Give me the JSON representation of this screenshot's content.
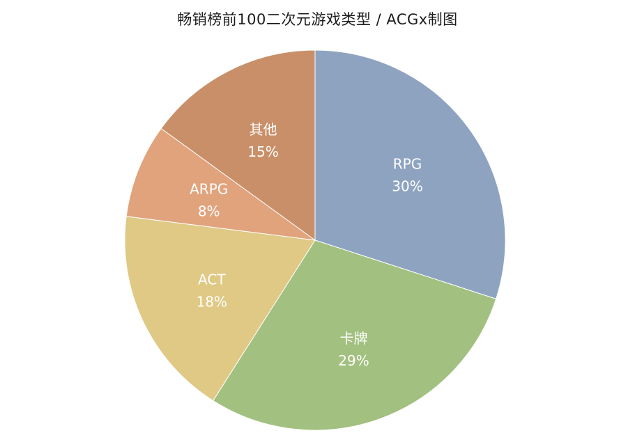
{
  "chart_data": {
    "type": "pie",
    "title": "畅销榜前100二次元游戏类型 / ACGx制图",
    "slices": [
      {
        "label": "RPG",
        "value": 30,
        "value_label": "30%",
        "color": "#8ea3c0"
      },
      {
        "label": "卡牌",
        "value": 29,
        "value_label": "29%",
        "color": "#a2c07f"
      },
      {
        "label": "ACT",
        "value": 18,
        "value_label": "18%",
        "color": "#dfc985"
      },
      {
        "label": "ARPG",
        "value": 8,
        "value_label": "8%",
        "color": "#e1a37c"
      },
      {
        "label": "其他",
        "value": 15,
        "value_label": "15%",
        "color": "#c98f69"
      }
    ]
  }
}
